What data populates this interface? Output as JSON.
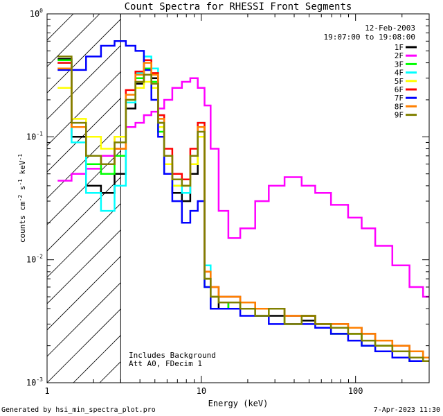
{
  "chart_data": {
    "type": "line",
    "title": "Count Spectra for RHESSI Front Segments",
    "xlabel": "Energy (keV)",
    "ylabel_main": "counts cm",
    "ylabel_exp1": "-2",
    "ylabel_mid": " s",
    "ylabel_exp2": "-1",
    "ylabel_end": " keV",
    "ylabel_exp3": "-1",
    "x_scale": "log",
    "y_scale": "log",
    "xlim": [
      1,
      300
    ],
    "ylim": [
      0.001,
      1
    ],
    "x_tick_labels": [
      {
        "value": 1,
        "label": "1"
      },
      {
        "value": 10,
        "label": "10"
      },
      {
        "value": 100,
        "label": "100"
      }
    ],
    "y_tick_labels": [
      {
        "value": 1,
        "base": "10",
        "exp": "0"
      },
      {
        "value": 0.1,
        "base": "10",
        "exp": "-1"
      },
      {
        "value": 0.01,
        "base": "10",
        "exp": "-2"
      },
      {
        "value": 0.001,
        "base": "10",
        "exp": "-3"
      }
    ],
    "attenuated_region_max_kev": 3,
    "date": "12-Feb-2003",
    "time_range": "19:07:00 to 19:08:00",
    "annotations": [
      "Includes Background",
      "Att A0, FDecim 1"
    ],
    "energy_bins_kev": [
      1.3,
      1.6,
      2.0,
      2.5,
      3.0,
      3.5,
      4.0,
      4.5,
      5.0,
      5.5,
      6.0,
      7.0,
      8.0,
      9.0,
      10.0,
      11.0,
      12.0,
      14.0,
      16.0,
      20.0,
      25.0,
      30.0,
      40.0,
      50.0,
      60.0,
      80.0,
      100.0,
      120.0,
      150.0,
      200.0,
      250.0,
      300.0
    ],
    "series": [
      {
        "name": "1F",
        "color": "#000000",
        "values": [
          0.43,
          0.1,
          0.04,
          0.035,
          0.05,
          0.17,
          0.27,
          0.35,
          0.3,
          0.13,
          0.06,
          0.035,
          0.03,
          0.05,
          0.12,
          0.007,
          0.005,
          0.004,
          0.0045,
          0.004,
          0.0035,
          0.0035,
          0.003,
          0.0032,
          0.003,
          0.0025,
          0.0025,
          0.0022,
          0.002,
          0.0018,
          0.0015,
          0.0015
        ]
      },
      {
        "name": "2F",
        "color": "#ff00ff",
        "values": [
          0.044,
          0.05,
          0.055,
          0.07,
          0.1,
          0.12,
          0.13,
          0.15,
          0.16,
          0.17,
          0.2,
          0.25,
          0.28,
          0.3,
          0.25,
          0.18,
          0.08,
          0.025,
          0.015,
          0.018,
          0.03,
          0.04,
          0.047,
          0.04,
          0.035,
          0.028,
          0.022,
          0.018,
          0.013,
          0.009,
          0.006,
          0.005
        ]
      },
      {
        "name": "3F",
        "color": "#00ff00",
        "values": [
          0.42,
          0.12,
          0.06,
          0.05,
          0.07,
          0.2,
          0.3,
          0.36,
          0.28,
          0.11,
          0.05,
          0.04,
          0.04,
          0.06,
          0.1,
          0.006,
          0.004,
          0.004,
          0.0045,
          0.004,
          0.0035,
          0.004,
          0.003,
          0.0035,
          0.003,
          0.0025,
          0.0025,
          0.002,
          0.002,
          0.0018,
          0.0015,
          0.0015
        ]
      },
      {
        "name": "4F",
        "color": "#00ffff",
        "values": [
          0.4,
          0.09,
          0.035,
          0.025,
          0.04,
          0.19,
          0.33,
          0.45,
          0.36,
          0.15,
          0.07,
          0.04,
          0.035,
          0.07,
          0.13,
          0.009,
          0.006,
          0.005,
          0.005,
          0.0045,
          0.004,
          0.004,
          0.0035,
          0.0035,
          0.003,
          0.003,
          0.0028,
          0.0025,
          0.002,
          0.002,
          0.0018,
          0.0015
        ]
      },
      {
        "name": "5F",
        "color": "#ffff00",
        "values": [
          0.25,
          0.14,
          0.1,
          0.08,
          0.1,
          0.2,
          0.25,
          0.28,
          0.25,
          0.12,
          0.06,
          0.04,
          0.04,
          0.06,
          0.1,
          0.007,
          0.005,
          0.0045,
          0.0045,
          0.004,
          0.0035,
          0.004,
          0.003,
          0.0035,
          0.003,
          0.0028,
          0.0025,
          0.0022,
          0.002,
          0.0018,
          0.0016,
          0.0015
        ]
      },
      {
        "name": "6F",
        "color": "#ff0000",
        "values": [
          0.4,
          0.12,
          0.07,
          0.06,
          0.08,
          0.24,
          0.34,
          0.42,
          0.33,
          0.15,
          0.08,
          0.05,
          0.045,
          0.08,
          0.13,
          0.008,
          0.006,
          0.005,
          0.005,
          0.0045,
          0.004,
          0.004,
          0.0035,
          0.0035,
          0.003,
          0.003,
          0.0028,
          0.0025,
          0.0022,
          0.002,
          0.0018,
          0.0016
        ]
      },
      {
        "name": "7F",
        "color": "#0000ff",
        "values": [
          0.35,
          0.35,
          0.45,
          0.55,
          0.6,
          0.55,
          0.5,
          0.35,
          0.2,
          0.1,
          0.05,
          0.03,
          0.02,
          0.025,
          0.03,
          0.006,
          0.004,
          0.004,
          0.004,
          0.0035,
          0.0035,
          0.003,
          0.003,
          0.003,
          0.0028,
          0.0025,
          0.0022,
          0.002,
          0.0018,
          0.0016,
          0.0015,
          0.0015
        ]
      },
      {
        "name": "8F",
        "color": "#ff8000",
        "values": [
          0.36,
          0.12,
          0.07,
          0.06,
          0.08,
          0.22,
          0.32,
          0.4,
          0.32,
          0.14,
          0.07,
          0.045,
          0.04,
          0.07,
          0.12,
          0.008,
          0.006,
          0.005,
          0.005,
          0.0045,
          0.004,
          0.004,
          0.0035,
          0.0035,
          0.003,
          0.003,
          0.0028,
          0.0025,
          0.0022,
          0.002,
          0.0018,
          0.0016
        ]
      },
      {
        "name": "9F",
        "color": "#808000",
        "values": [
          0.45,
          0.13,
          0.07,
          0.06,
          0.09,
          0.2,
          0.28,
          0.32,
          0.27,
          0.13,
          0.07,
          0.045,
          0.04,
          0.07,
          0.11,
          0.007,
          0.005,
          0.0045,
          0.0045,
          0.004,
          0.0035,
          0.004,
          0.003,
          0.0035,
          0.003,
          0.0028,
          0.0025,
          0.0022,
          0.002,
          0.0018,
          0.0016,
          0.0015
        ]
      }
    ]
  },
  "footer": {
    "generated_by": "Generated by hsi_min_spectra_plot.pro",
    "timestamp": "7-Apr-2023 11:30"
  }
}
